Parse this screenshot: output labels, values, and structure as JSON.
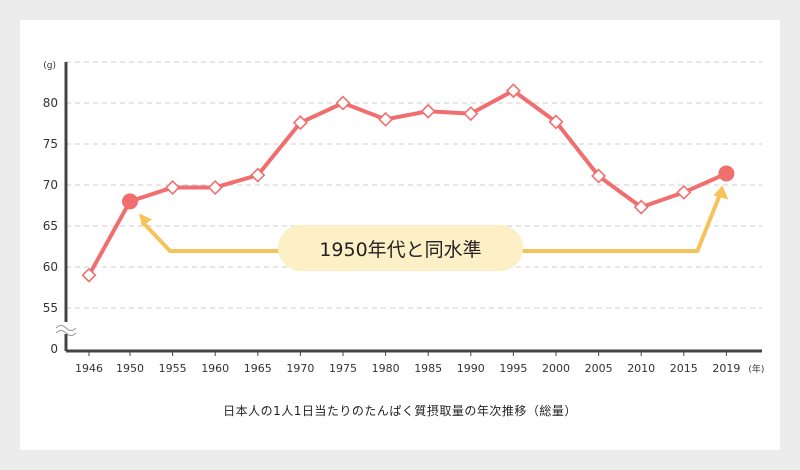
{
  "chart_data": {
    "type": "line",
    "title": "",
    "caption": "日本人の1人1日当たりのたんぱく質摂取量の年次推移（総量）",
    "y_unit_label": "(g)",
    "x_unit_label": "(年)",
    "y_ticks": [
      "0",
      "55",
      "60",
      "65",
      "70",
      "75",
      "80"
    ],
    "x": [
      "1946",
      "1950",
      "1955",
      "1960",
      "1965",
      "1970",
      "1975",
      "1980",
      "1985",
      "1990",
      "1995",
      "2000",
      "2005",
      "2010",
      "2015",
      "2019"
    ],
    "series": [
      {
        "values": [
          59.0,
          68.0,
          69.7,
          69.7,
          71.2,
          77.6,
          80.0,
          78.0,
          79.0,
          78.7,
          81.5,
          77.7,
          71.1,
          67.3,
          69.1,
          71.4
        ],
        "color": "#f16e6e",
        "highlighted_points": [
          "1950",
          "2019"
        ]
      }
    ],
    "annotation": {
      "text": "1950年代と同水準",
      "connects": [
        "1950",
        "2019"
      ],
      "color": "#f5c35a"
    },
    "axis_break": true,
    "grid": true
  }
}
